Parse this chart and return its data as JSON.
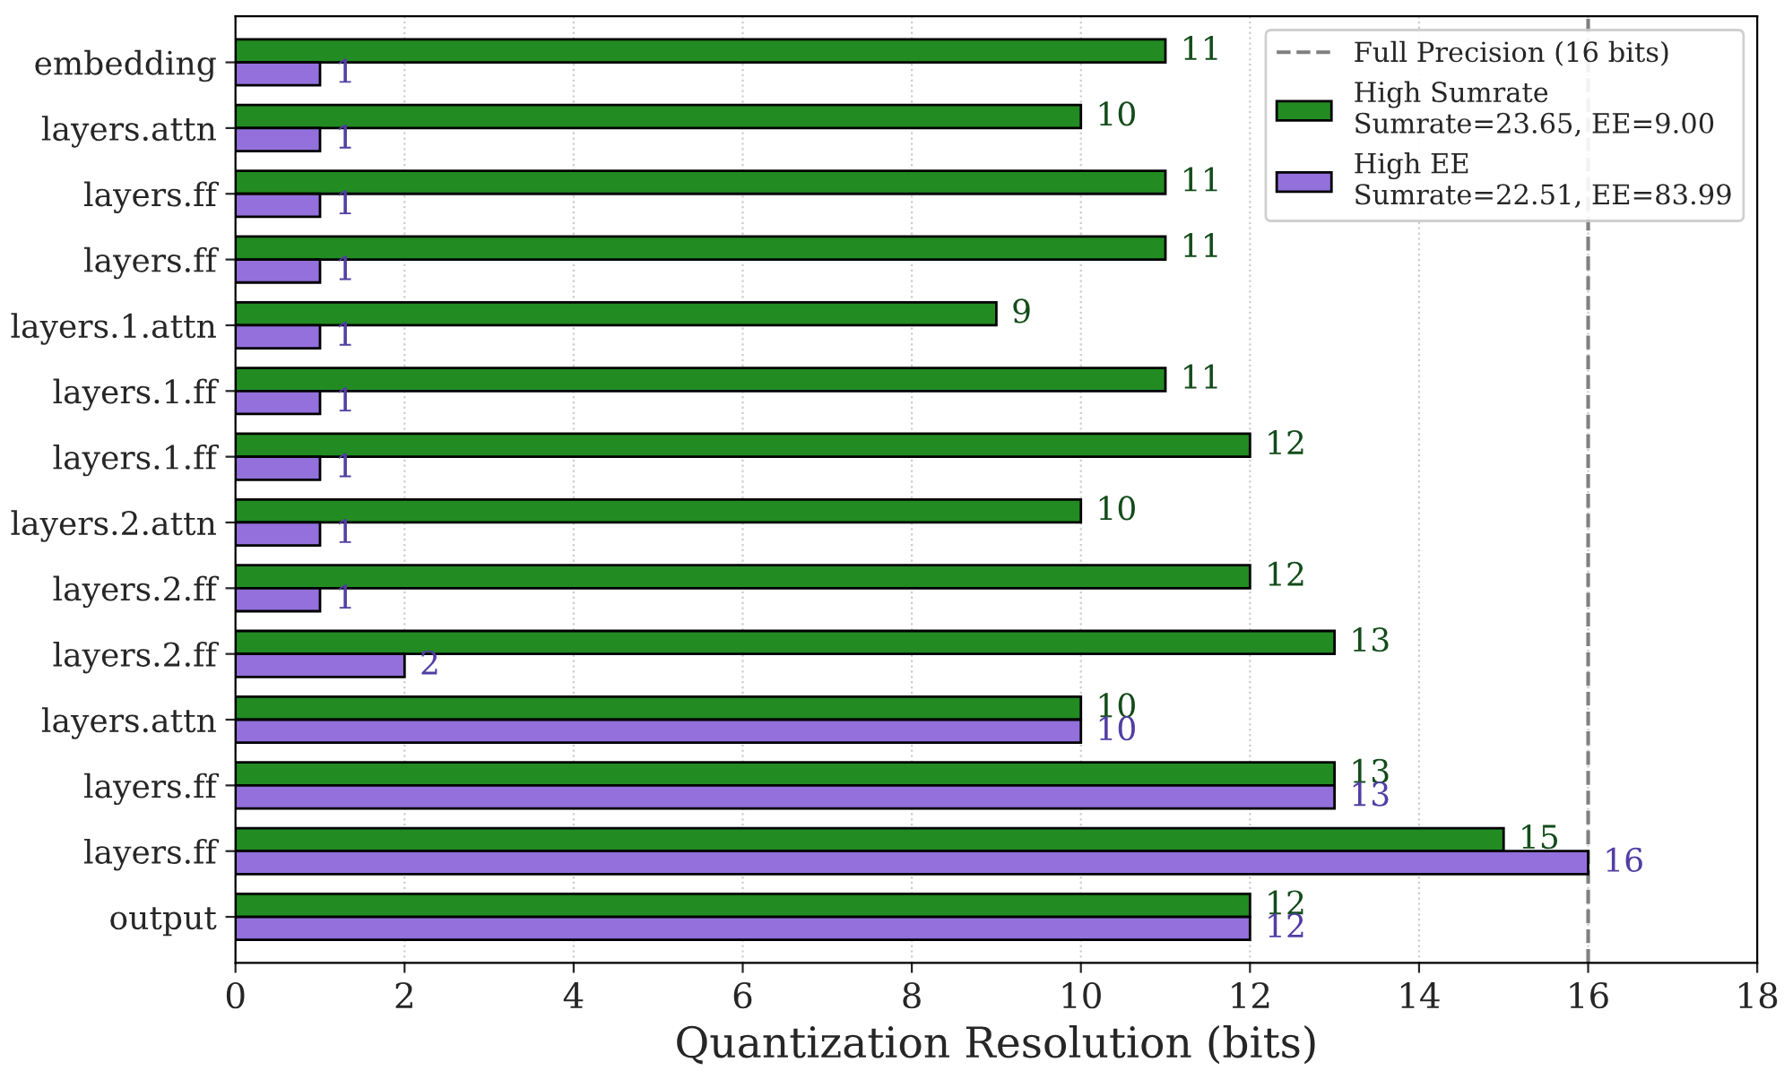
{
  "chart_data": {
    "type": "bar",
    "orientation": "horizontal",
    "xlabel": "Quantization Resolution (bits)",
    "categories": [
      "embedding",
      "layers.attn",
      "layers.ff",
      "layers.ff",
      "layers.1.attn",
      "layers.1.ff",
      "layers.1.ff",
      "layers.2.attn",
      "layers.2.ff",
      "layers.2.ff",
      "layers.attn",
      "layers.ff",
      "layers.ff",
      "output"
    ],
    "series": [
      {
        "name": "High Sumrate\nSumrate=23.65, EE=9.00",
        "color": "#228b22",
        "values": [
          11,
          10,
          11,
          11,
          9,
          11,
          12,
          10,
          12,
          13,
          10,
          13,
          15,
          12
        ]
      },
      {
        "name": "High EE\nSumrate=22.51, EE=83.99",
        "color": "#9370db",
        "values": [
          1,
          1,
          1,
          1,
          1,
          1,
          1,
          1,
          1,
          2,
          10,
          13,
          16,
          12
        ]
      }
    ],
    "xlim": [
      0,
      18
    ],
    "xticks": [
      0,
      2,
      4,
      6,
      8,
      10,
      12,
      14,
      16,
      18
    ],
    "ref_lines": [
      {
        "axis": "x",
        "value": 16,
        "label": "Full Precision (16 bits)",
        "color": "#808080",
        "line_style": "dashed"
      }
    ],
    "data_labels": true,
    "grid": "x",
    "legend": "top right"
  }
}
